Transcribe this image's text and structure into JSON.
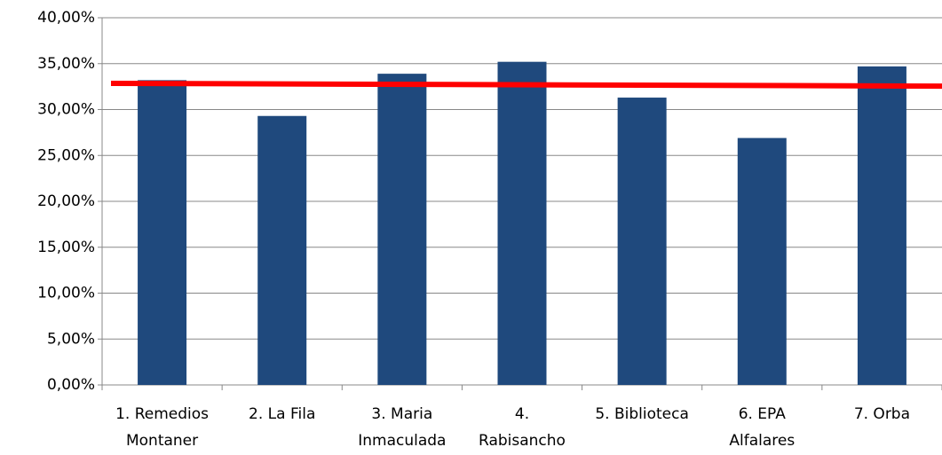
{
  "chart_data": {
    "type": "bar",
    "categories": [
      [
        "1. Remedios",
        "Montaner"
      ],
      [
        "2. La Fila"
      ],
      [
        "3. Maria",
        "Inmaculada"
      ],
      [
        "4.",
        "Rabisancho"
      ],
      [
        "5. Biblioteca"
      ],
      [
        "6. EPA",
        "Alfalares"
      ],
      [
        "7. Orba"
      ]
    ],
    "values": [
      33.2,
      29.3,
      33.9,
      35.2,
      31.3,
      26.9,
      34.7
    ],
    "color": "#1f497d",
    "trendline": {
      "color": "#ff0000",
      "values": [
        32.85,
        32.55
      ]
    },
    "ylim": [
      0,
      40
    ],
    "yticks": [
      {
        "value": 0,
        "label": "0,00%"
      },
      {
        "value": 5,
        "label": "5,00%"
      },
      {
        "value": 10,
        "label": "10,00%"
      },
      {
        "value": 15,
        "label": "15,00%"
      },
      {
        "value": 20,
        "label": "20,00%"
      },
      {
        "value": 25,
        "label": "25,00%"
      },
      {
        "value": 30,
        "label": "30,00%"
      },
      {
        "value": 35,
        "label": "35,00%"
      },
      {
        "value": 40,
        "label": "40,00%"
      }
    ],
    "grid": true
  }
}
